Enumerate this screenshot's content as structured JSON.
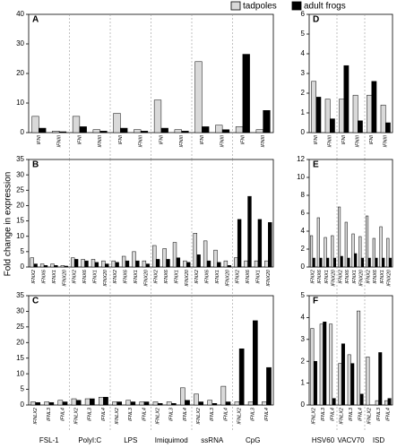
{
  "y_label": "Fold change in expression",
  "chart_data": [
    {
      "type": "bar",
      "title": "A",
      "categories": [
        "IFNI",
        "IFNIII",
        "IFNI",
        "IFNIII",
        "IFNI",
        "IFNIII",
        "IFNI",
        "IFNIII",
        "IFNI",
        "IFNIII",
        "IFNI",
        "IFNIII"
      ],
      "series": [
        {
          "name": "tadpoles",
          "color": "#d9d9d9",
          "values": [
            5.5,
            0.5,
            5.5,
            1,
            6.5,
            1,
            11,
            1,
            24,
            2.5,
            2,
            1
          ]
        },
        {
          "name": "adult frogs",
          "color": "#000000",
          "values": [
            1.5,
            0.3,
            2,
            0.5,
            1.5,
            0.5,
            1.5,
            0.5,
            2,
            1,
            26.5,
            7.5
          ]
        }
      ],
      "ylim": [
        0,
        40
      ],
      "yticks": [
        0,
        10,
        20,
        30,
        40
      ]
    },
    {
      "type": "bar",
      "title": "B",
      "categories": [
        "IFNX2",
        "IFNX6",
        "IFNX1",
        "IFNX20",
        "IFNX2",
        "IFNX6",
        "IFNX1",
        "IFNX20",
        "IFNX2",
        "IFNX6",
        "IFNX1",
        "IFNX20",
        "IFNX2",
        "IFNX6",
        "IFNX1",
        "IFNX20",
        "IFNX2",
        "IFNX6",
        "IFNX1",
        "IFNX20",
        "IFNX2",
        "IFNX6",
        "IFNX1",
        "IFNX20"
      ],
      "series": [
        {
          "name": "tadpoles",
          "color": "#d9d9d9",
          "values": [
            3,
            1,
            1,
            0.5,
            3,
            2.5,
            2.5,
            2,
            2,
            3.5,
            5,
            2,
            7,
            6,
            8,
            2,
            11,
            8.5,
            5.5,
            2,
            3,
            2,
            2,
            2
          ]
        },
        {
          "name": "adult frogs",
          "color": "#000000",
          "values": [
            1,
            0.5,
            0.5,
            0.3,
            2.5,
            2,
            1.5,
            1,
            1.5,
            2,
            2,
            1,
            2.5,
            2.5,
            3,
            1.5,
            4,
            2,
            1.5,
            0.5,
            15.5,
            23,
            15.5,
            14.5
          ]
        }
      ],
      "ylim": [
        0,
        35
      ],
      "yticks": [
        0,
        5,
        10,
        15,
        20,
        25,
        30,
        35
      ]
    },
    {
      "type": "bar",
      "title": "C",
      "categories": [
        "IFNLX2",
        "IFNL3",
        "IFNL4",
        "IFNLX2",
        "IFNL3",
        "IFNL4",
        "IFNLX2",
        "IFNL3",
        "IFNL4",
        "IFNLX2",
        "IFNL3",
        "IFNL4",
        "IFNLX2",
        "IFNL3",
        "IFNL4",
        "IFNLX2",
        "IFNL3",
        "IFNL4"
      ],
      "groups": [
        "FSL-1",
        "PolyI:C",
        "LPS",
        "Imiquimod",
        "ssRNA",
        "CpG"
      ],
      "series": [
        {
          "name": "tadpoles",
          "color": "#d9d9d9",
          "values": [
            1,
            1,
            1.5,
            2,
            2,
            2.5,
            1,
            1.5,
            1,
            1,
            1,
            5.5,
            3.5,
            1.5,
            6,
            1,
            1,
            1
          ]
        },
        {
          "name": "adult frogs",
          "color": "#000000",
          "values": [
            0.8,
            0.8,
            1,
            1.5,
            2,
            2.5,
            1,
            1,
            1,
            0.5,
            0.5,
            1.5,
            1,
            0.5,
            1,
            18,
            27,
            12
          ]
        }
      ],
      "ylim": [
        0,
        35
      ],
      "yticks": [
        0,
        5,
        10,
        15,
        20,
        25,
        30,
        35
      ]
    },
    {
      "type": "bar",
      "title": "D",
      "categories": [
        "IFNI",
        "IFNIII",
        "IFNI",
        "IFNIII",
        "IFNI",
        "IFNIII"
      ],
      "series": [
        {
          "name": "tadpoles",
          "color": "#d9d9d9",
          "values": [
            2.6,
            1.7,
            1.7,
            1.9,
            1.9,
            1.4
          ]
        },
        {
          "name": "adult frogs",
          "color": "#000000",
          "values": [
            1.8,
            0.7,
            3.4,
            0.6,
            2.6,
            0.5
          ]
        }
      ],
      "ylim": [
        0,
        6
      ],
      "yticks": [
        0,
        1,
        2,
        3,
        4,
        5,
        6
      ]
    },
    {
      "type": "bar",
      "title": "E",
      "categories": [
        "IFNX2",
        "IFNX6",
        "IFNX1",
        "IFNX20",
        "IFNX2",
        "IFNX6",
        "IFNX1",
        "IFNX20",
        "IFNX2",
        "IFNX6",
        "IFNX1",
        "IFNX20"
      ],
      "series": [
        {
          "name": "tadpoles",
          "color": "#d9d9d9",
          "values": [
            3.5,
            5.5,
            3.3,
            3.5,
            6.7,
            5,
            3.7,
            3.4,
            5.7,
            3.2,
            4.5,
            3.2
          ]
        },
        {
          "name": "adult frogs",
          "color": "#000000",
          "values": [
            1,
            1,
            1,
            1,
            1.2,
            1,
            1.5,
            1,
            1,
            1,
            1,
            1
          ]
        }
      ],
      "ylim": [
        0,
        12
      ],
      "yticks": [
        0,
        2,
        4,
        6,
        8,
        10,
        12
      ]
    },
    {
      "type": "bar",
      "title": "F",
      "categories": [
        "IFNLX2",
        "IFNL3",
        "IFNL4",
        "IFNLX2",
        "IFNL3",
        "IFNL4",
        "IFNLX2",
        "IFNL3",
        "IFNL4"
      ],
      "groups": [
        "HSV60",
        "VACV70",
        "ISD"
      ],
      "series": [
        {
          "name": "tadpoles",
          "color": "#d9d9d9",
          "values": [
            3.5,
            3.7,
            3.7,
            1.9,
            2.3,
            4.3,
            2.2,
            0.2,
            0.2
          ]
        },
        {
          "name": "adult frogs",
          "color": "#000000",
          "values": [
            2,
            3.8,
            0.3,
            2.8,
            1.9,
            0.5,
            0,
            2.4,
            0.3
          ]
        }
      ],
      "ylim": [
        0,
        5
      ],
      "yticks": [
        0,
        1,
        2,
        3,
        4,
        5
      ]
    }
  ]
}
